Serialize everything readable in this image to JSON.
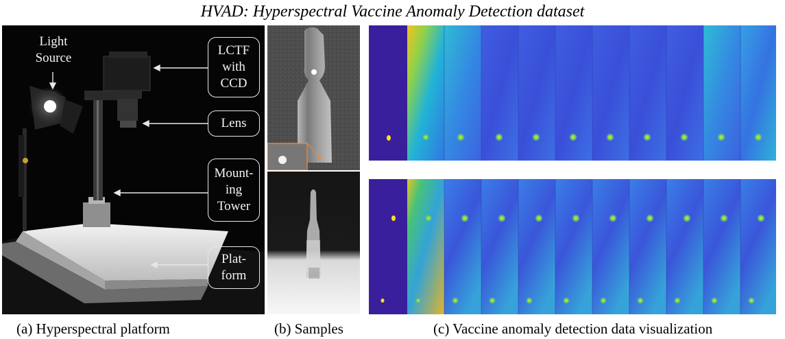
{
  "title": "HVAD: Hyperspectral Vaccine Anomaly Detection dataset",
  "captions": {
    "a": "(a) Hyperspectral platform",
    "b": "(b) Samples",
    "c": "(c) Vaccine anomaly detection data visualization"
  },
  "platform_labels": {
    "light_source": [
      "Light",
      "Source"
    ],
    "lctf": [
      "LCTF",
      "with",
      "CCD"
    ],
    "lens": [
      "Lens"
    ],
    "tower": [
      "Mount-",
      "ing",
      "Tower"
    ],
    "platform": [
      "Plat-",
      "form"
    ]
  },
  "colors": {
    "mask_background": "#3a1f9c",
    "anomaly": "#f6e21a",
    "band_low": "#3d2fd8",
    "band_mid": "#2f86e8",
    "band_high": "#2fd0c8",
    "inset_border": "#e8873a"
  }
}
